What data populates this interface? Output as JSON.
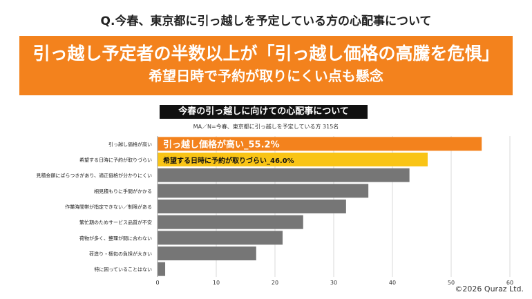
{
  "header": {
    "question": "Q.今春、東京都に引っ越しを予定している方の心配事について",
    "headline_line1": "引っ越し予定者の半数以上が「引っ越し価格の高騰を危惧」",
    "headline_line2": "希望日時で予約が取りにくい点も懸念"
  },
  "chart_data": {
    "type": "bar",
    "orientation": "horizontal",
    "title": "今春の引っ越しに向けての心配事について",
    "subtitle": "MA／N=今春、東京都に引っ越しを予定している方 315名",
    "categories": [
      "引っ越し価格が高い",
      "希望する日時に予約が取りづらい",
      "見積金額にばらつきがあり、適正価格が分かりにくい",
      "相見積もりに手間がかかる",
      "作業時間帯が指定できない／制限がある",
      "繁忙期のためサービス品質が不安",
      "荷物が多く、整理が間に合わない",
      "荷造り・梱包の負担が大きい",
      "特に困っていることはない"
    ],
    "values": [
      55.2,
      46.0,
      42.9,
      35.9,
      32.1,
      24.8,
      21.3,
      16.8,
      1.3
    ],
    "bar_colors": [
      "#f3821d",
      "#f9c416",
      "#767676",
      "#767676",
      "#767676",
      "#767676",
      "#767676",
      "#767676",
      "#767676"
    ],
    "data_labels": [
      "引っ越し価格が高い_55.2%",
      "希望する日時に予約が取りづらい_46.0%",
      "",
      "",
      "",
      "",
      "",
      "",
      ""
    ],
    "data_label_colors": [
      "#ffffff",
      "#111111"
    ],
    "xlim": [
      0,
      60
    ],
    "xticks": [
      0,
      10,
      20,
      30,
      40,
      50,
      60
    ],
    "grid": true
  },
  "footer": {
    "copyright": "©2026 Quraz Ltd."
  }
}
